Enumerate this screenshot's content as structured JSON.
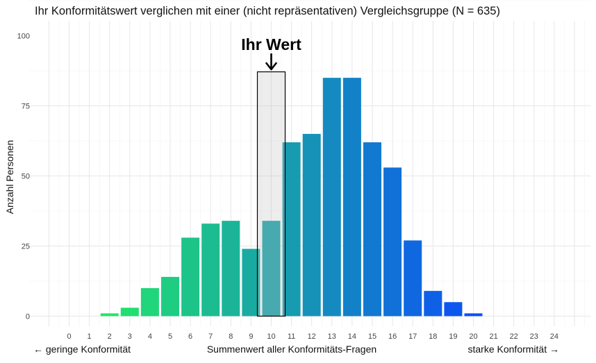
{
  "chart_data": {
    "type": "bar",
    "title": "Ihr Konformitätswert verglichen mit einer (nicht repräsentativen) Vergleichsgruppe (N = 635)",
    "xlabel": "Summenwert aller Konformitäts-Fragen",
    "xlabel_left": "← geringe Konformität",
    "xlabel_right": "starke Konformität →",
    "ylabel": "Anzahl Personen",
    "categories": [
      "0",
      "1",
      "2",
      "3",
      "4",
      "5",
      "6",
      "7",
      "8",
      "9",
      "10",
      "11",
      "12",
      "13",
      "14",
      "15",
      "16",
      "17",
      "18",
      "19",
      "20",
      "21",
      "22",
      "23",
      "24"
    ],
    "values": [
      0,
      0,
      1,
      3,
      10,
      14,
      28,
      33,
      34,
      24,
      34,
      62,
      65,
      85,
      85,
      62,
      53,
      27,
      9,
      5,
      1,
      0,
      0,
      0,
      0
    ],
    "yticks": [
      "0",
      "25",
      "50",
      "75",
      "100"
    ],
    "ylim": [
      0,
      100
    ],
    "grid": true,
    "highlight": {
      "category": "10",
      "label": "Ihr Wert"
    },
    "color_gradient": [
      "#22e66a",
      "#0c4ff7"
    ]
  }
}
